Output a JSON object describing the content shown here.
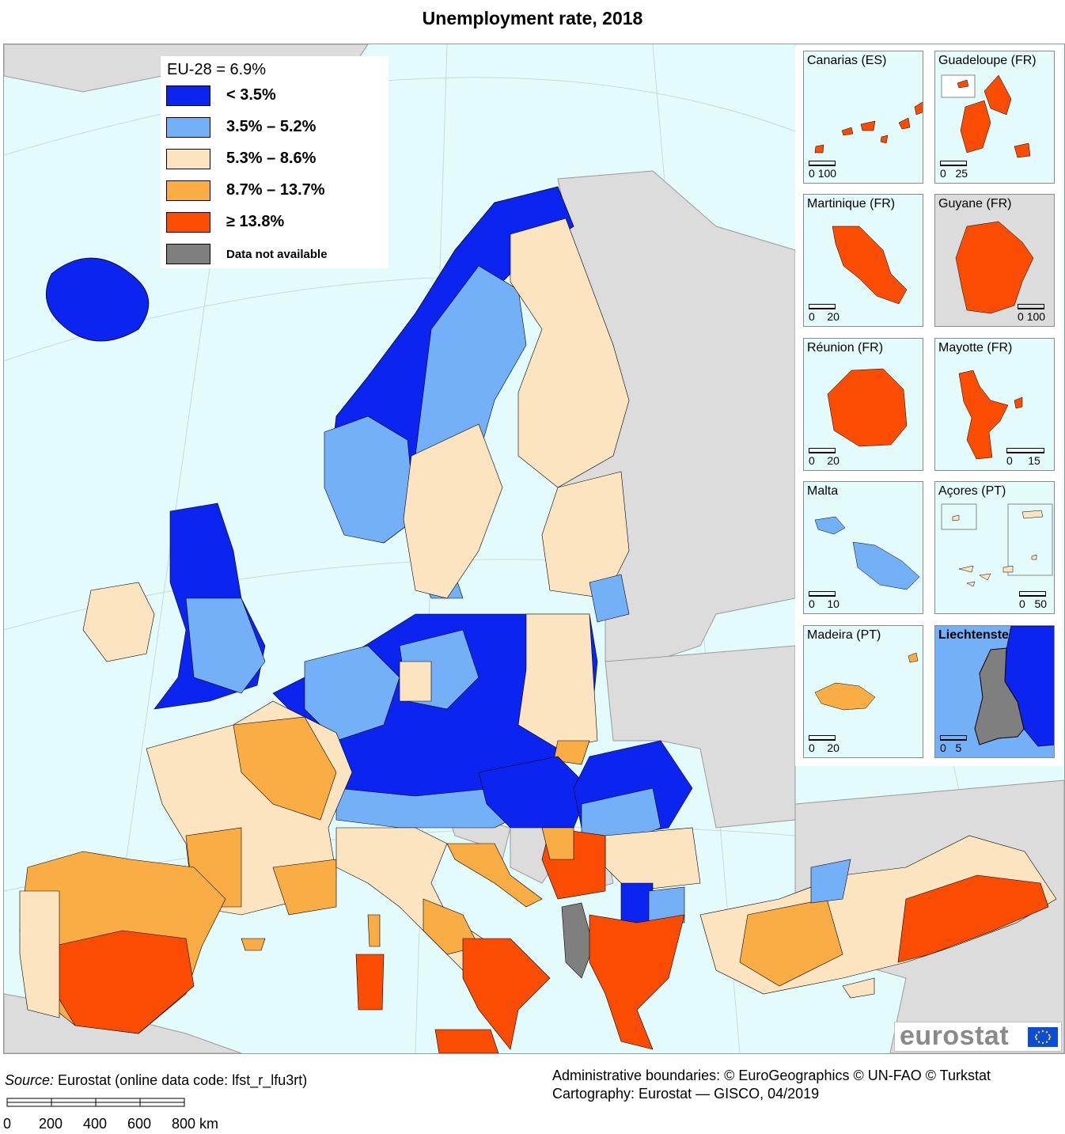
{
  "title": "Unemployment rate, 2018",
  "legend": {
    "header": "EU-28 = 6.9%",
    "classes": [
      {
        "label": "< 3.5%",
        "color": "#0b24f0"
      },
      {
        "label": "3.5%  – 5.2%",
        "color": "#74b0f7"
      },
      {
        "label": "5.3%  – 8.6%",
        "color": "#fde4c0"
      },
      {
        "label": "8.7%  – 13.7%",
        "color": "#fbad45"
      },
      {
        "label": "≥ 13.8%",
        "color": "#fb4c04"
      },
      {
        "label": "Data not available",
        "color": "#7f7f7f"
      }
    ]
  },
  "colors": {
    "sea": "#e3fbfb",
    "non_eu_land": "#dcdcdc",
    "border": "#000000"
  },
  "insets": [
    {
      "name": "Canarias (ES)",
      "scale": [
        "0",
        "100"
      ],
      "fill_class": 4
    },
    {
      "name": "Guadeloupe (FR)",
      "scale": [
        "0",
        "25"
      ],
      "fill_class": 4
    },
    {
      "name": "Martinique (FR)",
      "scale": [
        "0",
        "20"
      ],
      "fill_class": 4
    },
    {
      "name": "Guyane (FR)",
      "scale": [
        "0",
        "100"
      ],
      "fill_class": 4
    },
    {
      "name": "Réunion (FR)",
      "scale": [
        "0",
        "20"
      ],
      "fill_class": 4
    },
    {
      "name": "Mayotte (FR)",
      "scale": [
        "0",
        "15"
      ],
      "fill_class": 4
    },
    {
      "name": "Malta",
      "scale": [
        "0",
        "10"
      ],
      "fill_class": 1
    },
    {
      "name": "Açores (PT)",
      "scale": [
        "0",
        "50"
      ],
      "fill_class": 3
    },
    {
      "name": "Madeira (PT)",
      "scale": [
        "0",
        "20"
      ],
      "fill_class": 3
    },
    {
      "name": "Liechtenstein",
      "scale": [
        "0",
        "5"
      ],
      "fill_class": 5
    }
  ],
  "logo": {
    "text": "eurostat"
  },
  "footer": {
    "source_label": "Source:",
    "source_text": " Eurostat (online data code: lfst_r_lfu3rt)",
    "boundaries": "Administrative boundaries: © EuroGeographics © UN-FAO © Turkstat",
    "cartography": "Cartography: Eurostat — GISCO, 04/2019",
    "scale_ticks": [
      "0",
      "200",
      "400",
      "600",
      "800 km"
    ]
  }
}
